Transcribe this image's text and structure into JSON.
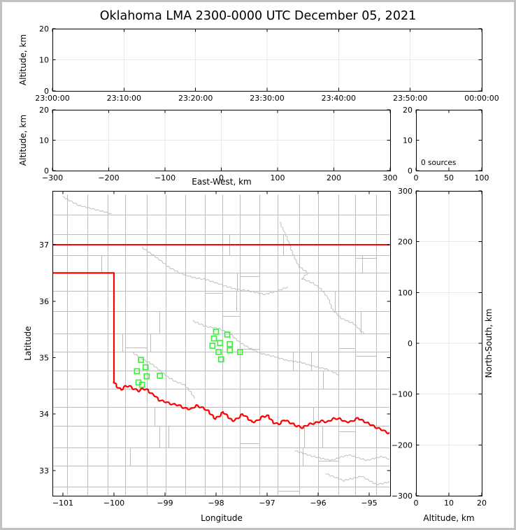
{
  "title": "Oklahoma LMA 2300-0000 UTC December 05, 2021",
  "colors": {
    "frame": "#c2c2c2",
    "spine": "#000000",
    "grid": "#e9e9e9",
    "county": "#bdbdbd",
    "state_border": "#ff0000",
    "station_marker": "#3df03d",
    "text": "#000000"
  },
  "chart_data": [
    {
      "id": "time_height",
      "type": "scatter",
      "ylabel": "Altitude, km",
      "ylim": [
        0,
        20
      ],
      "yticks": [
        0,
        10,
        20
      ],
      "xtick_labels": [
        "23:00:00",
        "23:10:00",
        "23:20:00",
        "23:30:00",
        "23:40:00",
        "23:50:00",
        "00:00:00"
      ],
      "grid": true,
      "points": []
    },
    {
      "id": "ew_height",
      "type": "scatter",
      "xlabel": "East-West, km",
      "xlim": [
        -300,
        300
      ],
      "xticks": [
        -300,
        -200,
        -100,
        0,
        100,
        200,
        300
      ],
      "ylabel": "Altitude, km",
      "ylim": [
        0,
        20
      ],
      "yticks": [
        0,
        10,
        20
      ],
      "grid": true,
      "points": []
    },
    {
      "id": "altitude_histogram",
      "type": "bar",
      "annotation": "0 sources",
      "xlim": [
        0,
        100
      ],
      "xticks": [
        0,
        50,
        100
      ],
      "ylim": [
        0,
        20
      ],
      "yticks": [
        0,
        10,
        20
      ],
      "grid": false,
      "values": []
    },
    {
      "id": "plan_map",
      "type": "scatter",
      "xlabel": "Longitude",
      "ylabel": "Latitude",
      "xlim": [
        -101.205,
        -94.589
      ],
      "ylim": [
        32.554,
        37.954
      ],
      "xticks": [
        -101,
        -100,
        -99,
        -98,
        -97,
        -96,
        -95
      ],
      "yticks": [
        33,
        34,
        35,
        36,
        37
      ],
      "grid": false,
      "marker": "open-square",
      "stations": [
        [
          -98.0,
          35.46
        ],
        [
          -97.78,
          35.41
        ],
        [
          -98.04,
          35.34
        ],
        [
          -97.92,
          35.26
        ],
        [
          -98.07,
          35.21
        ],
        [
          -97.73,
          35.24
        ],
        [
          -97.95,
          35.1
        ],
        [
          -97.73,
          35.13
        ],
        [
          -97.53,
          35.1
        ],
        [
          -97.9,
          34.97
        ],
        [
          -99.47,
          34.96
        ],
        [
          -99.38,
          34.83
        ],
        [
          -99.55,
          34.76
        ],
        [
          -99.36,
          34.67
        ],
        [
          -99.1,
          34.68
        ],
        [
          -99.52,
          34.56
        ],
        [
          -99.45,
          34.52
        ]
      ],
      "state_border": {
        "north": [
          [
            -101.205,
            37.0
          ],
          [
            -94.589,
            37.0
          ]
        ],
        "west_and_red_river": [
          [
            -101.205,
            36.5
          ],
          [
            -100.0,
            36.5
          ],
          [
            -100.0,
            34.565
          ],
          [
            -99.93,
            34.48
          ],
          [
            -99.86,
            34.43
          ],
          [
            -99.78,
            34.49
          ],
          [
            -99.7,
            34.5
          ],
          [
            -99.62,
            34.45
          ],
          [
            -99.52,
            34.41
          ],
          [
            -99.44,
            34.45
          ],
          [
            -99.36,
            34.44
          ],
          [
            -99.28,
            34.37
          ],
          [
            -99.2,
            34.33
          ],
          [
            -99.12,
            34.25
          ],
          [
            -99.0,
            34.22
          ],
          [
            -98.88,
            34.18
          ],
          [
            -98.74,
            34.16
          ],
          [
            -98.6,
            34.1
          ],
          [
            -98.48,
            34.09
          ],
          [
            -98.39,
            34.15
          ],
          [
            -98.28,
            34.12
          ],
          [
            -98.16,
            34.06
          ],
          [
            -98.09,
            33.99
          ],
          [
            -98.02,
            33.92
          ],
          [
            -97.94,
            33.96
          ],
          [
            -97.86,
            34.04
          ],
          [
            -97.76,
            33.95
          ],
          [
            -97.68,
            33.88
          ],
          [
            -97.58,
            33.92
          ],
          [
            -97.48,
            34.0
          ],
          [
            -97.39,
            33.94
          ],
          [
            -97.3,
            33.86
          ],
          [
            -97.19,
            33.88
          ],
          [
            -97.08,
            33.96
          ],
          [
            -96.98,
            33.97
          ],
          [
            -96.88,
            33.85
          ],
          [
            -96.77,
            33.82
          ],
          [
            -96.66,
            33.9
          ],
          [
            -96.55,
            33.85
          ],
          [
            -96.42,
            33.79
          ],
          [
            -96.3,
            33.76
          ],
          [
            -96.18,
            33.82
          ],
          [
            -96.06,
            33.84
          ],
          [
            -95.94,
            33.88
          ],
          [
            -95.82,
            33.86
          ],
          [
            -95.7,
            33.92
          ],
          [
            -95.58,
            33.92
          ],
          [
            -95.46,
            33.86
          ],
          [
            -95.34,
            33.87
          ],
          [
            -95.22,
            33.93
          ],
          [
            -95.1,
            33.87
          ],
          [
            -94.98,
            33.82
          ],
          [
            -94.86,
            33.76
          ],
          [
            -94.74,
            33.72
          ],
          [
            -94.64,
            33.67
          ],
          [
            -94.58,
            33.66
          ]
        ]
      },
      "rivers": [
        [
          [
            -101.0,
            37.85
          ],
          [
            -100.7,
            37.7
          ],
          [
            -100.35,
            37.62
          ],
          [
            -100.05,
            37.55
          ]
        ],
        [
          [
            -99.45,
            36.95
          ],
          [
            -99.2,
            36.8
          ],
          [
            -98.95,
            36.62
          ],
          [
            -98.72,
            36.5
          ],
          [
            -98.45,
            36.42
          ],
          [
            -98.18,
            36.38
          ],
          [
            -97.92,
            36.3
          ],
          [
            -97.65,
            36.22
          ],
          [
            -97.35,
            36.18
          ],
          [
            -97.05,
            36.12
          ],
          [
            -96.8,
            36.18
          ],
          [
            -96.6,
            36.25
          ]
        ],
        [
          [
            -96.75,
            37.4
          ],
          [
            -96.6,
            37.1
          ],
          [
            -96.5,
            36.85
          ],
          [
            -96.38,
            36.62
          ],
          [
            -96.2,
            36.5
          ],
          [
            -96.32,
            36.4
          ],
          [
            -96.1,
            36.32
          ],
          [
            -95.95,
            36.22
          ],
          [
            -95.8,
            36.05
          ],
          [
            -95.72,
            35.85
          ],
          [
            -95.55,
            35.7
          ],
          [
            -95.3,
            35.6
          ],
          [
            -95.1,
            35.42
          ]
        ],
        [
          [
            -98.45,
            35.65
          ],
          [
            -98.2,
            35.55
          ],
          [
            -97.95,
            35.52
          ],
          [
            -97.72,
            35.42
          ],
          [
            -97.55,
            35.28
          ],
          [
            -97.35,
            35.17
          ],
          [
            -97.1,
            35.07
          ],
          [
            -96.85,
            35.02
          ],
          [
            -96.6,
            34.95
          ],
          [
            -96.35,
            34.92
          ],
          [
            -96.1,
            34.85
          ],
          [
            -95.85,
            34.8
          ],
          [
            -95.6,
            34.7
          ]
        ],
        [
          [
            -99.65,
            35.1
          ],
          [
            -99.45,
            34.98
          ],
          [
            -99.25,
            34.88
          ],
          [
            -99.08,
            34.76
          ],
          [
            -98.95,
            34.66
          ],
          [
            -98.8,
            34.58
          ],
          [
            -98.62,
            34.52
          ],
          [
            -98.5,
            34.4
          ],
          [
            -98.42,
            34.28
          ]
        ],
        [
          [
            -96.45,
            33.35
          ],
          [
            -96.1,
            33.25
          ],
          [
            -95.75,
            33.18
          ],
          [
            -95.4,
            33.28
          ],
          [
            -95.05,
            33.18
          ],
          [
            -94.75,
            33.25
          ],
          [
            -94.6,
            33.2
          ]
        ],
        [
          [
            -95.85,
            32.95
          ],
          [
            -95.5,
            32.82
          ],
          [
            -95.15,
            32.9
          ],
          [
            -94.85,
            32.75
          ],
          [
            -94.6,
            32.8
          ]
        ]
      ],
      "counties": {
        "seed": 77003,
        "col_step": 0.37,
        "row_step": 0.34
      }
    },
    {
      "id": "ns_height",
      "type": "scatter",
      "xlabel": "Altitude, km",
      "xlim": [
        0,
        20
      ],
      "xticks": [
        0,
        10,
        20
      ],
      "ylabel": "North-South, km",
      "ylim": [
        -300,
        300
      ],
      "yticks": [
        300,
        200,
        100,
        0,
        -100,
        -200,
        -300
      ],
      "grid": true,
      "points": []
    }
  ]
}
